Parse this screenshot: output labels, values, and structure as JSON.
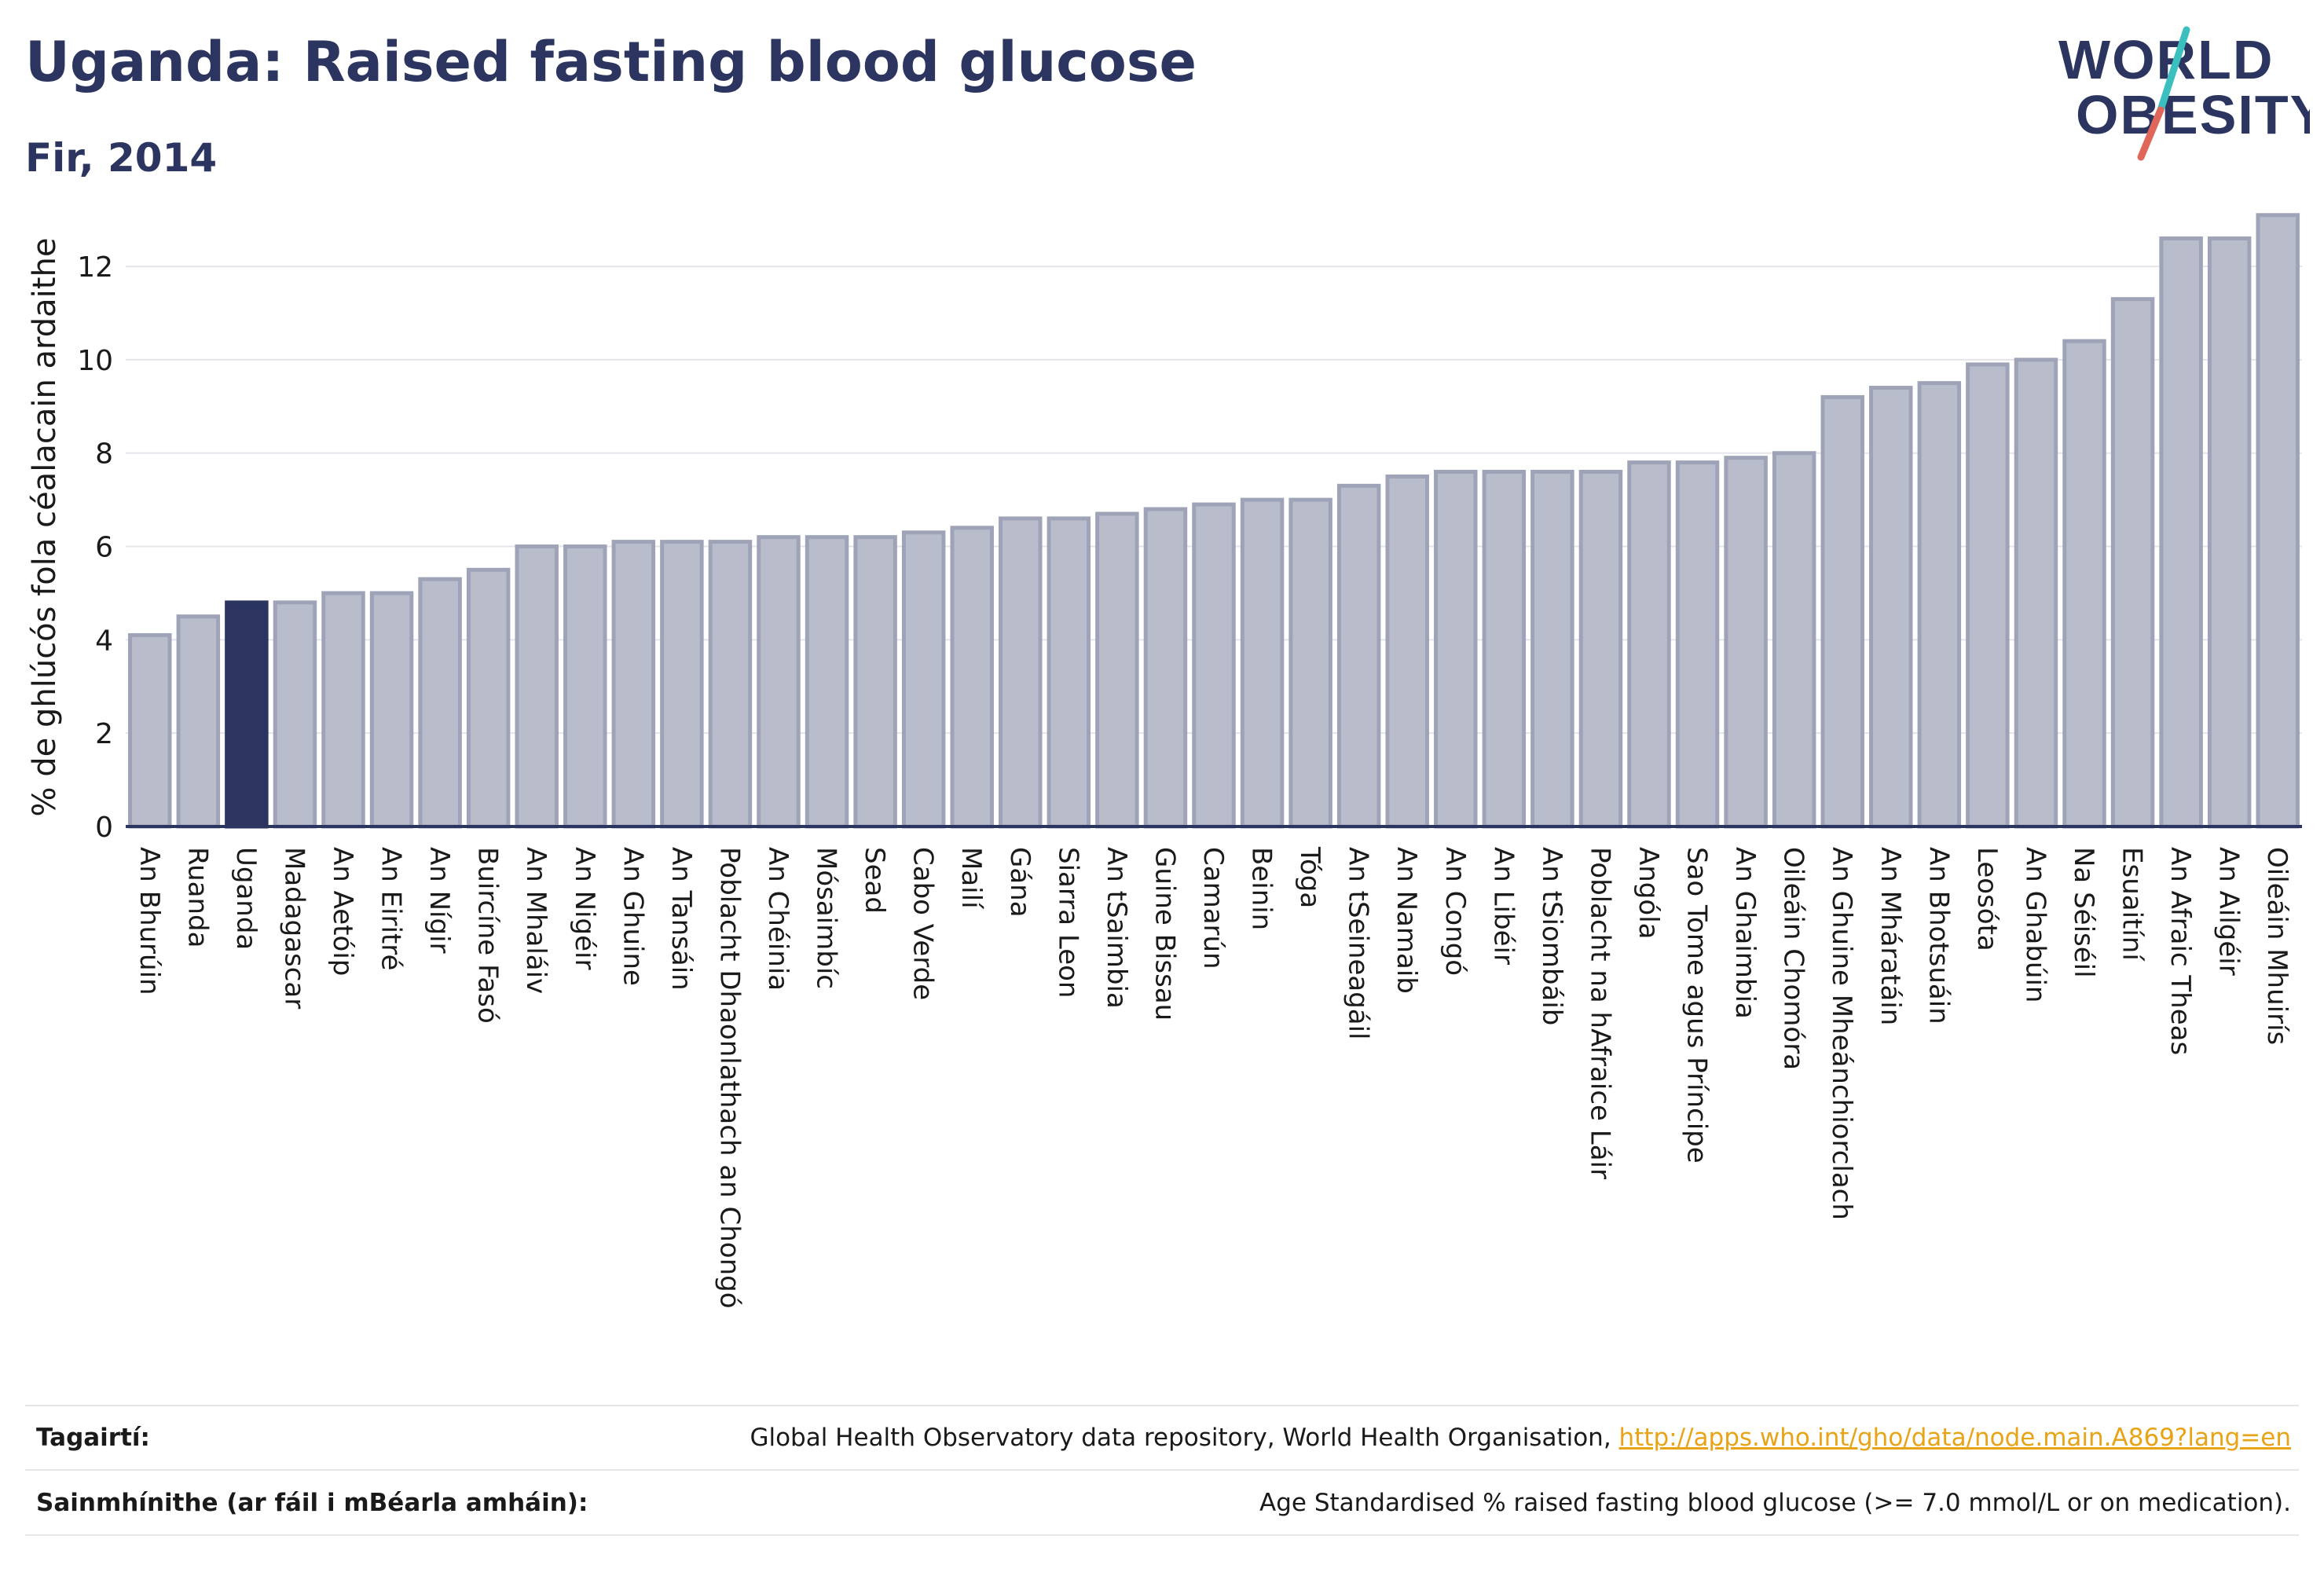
{
  "header": {
    "title": "Uganda: Raised fasting blood glucose",
    "subtitle": "Fir, 2014"
  },
  "logo": {
    "line1": "WORLD",
    "line2": "OBESITY",
    "text_color": "#2b3560",
    "slash_color_top": "#3bbfbf",
    "slash_color_bottom": "#e0665a"
  },
  "chart_data": {
    "type": "bar",
    "ylabel": "% de ghlúcós fola céalacain ardaithe",
    "xlabel": "",
    "ylim": [
      0,
      13.5
    ],
    "yticks": [
      0,
      2,
      4,
      6,
      8,
      10,
      12
    ],
    "grid": true,
    "highlight": "Uganda",
    "colors": {
      "bar": "#b9bdcb",
      "bar_edge": "#9ea3b8",
      "highlight": "#2b3560",
      "axis": "#2b3560",
      "grid": "#e4e5ea"
    },
    "categories": [
      "An Bhurúin",
      "Ruanda",
      "Uganda",
      "Madagascar",
      "An Aetóip",
      "An Eiritré",
      "An Nígir",
      "Buircíne Fasó",
      "An Mhaláiv",
      "An Nigéir",
      "An Ghuine",
      "An Tansáin",
      "Poblacht Dhaonlathach an Chongó",
      "An Chéinia",
      "Mósaimbíc",
      "Sead",
      "Cabo Verde",
      "Mailí",
      "Gána",
      "Siarra Leon",
      "An tSaimbia",
      "Guine Bissau",
      "Camarún",
      "Beinin",
      "Tóga",
      "An tSeineagáil",
      "An Namaib",
      "An Congó",
      "An Libéir",
      "An tSiombáib",
      "Poblacht na hAfraice Láir",
      "Angóla",
      "Sao Tome agus Príncipe",
      "An Ghaimbia",
      "Oileáin Chomóra",
      "An Ghuine Mheánchiorclach",
      "An Mháratáin",
      "An Bhotsuáin",
      "Leosóta",
      "An Ghabúin",
      "Na Séiséil",
      "Esuaitíní",
      "An Afraic Theas",
      "An Ailgéir",
      "Oileáin Mhuirís"
    ],
    "values": [
      4.1,
      4.5,
      4.8,
      4.8,
      5.0,
      5.0,
      5.3,
      5.5,
      6.0,
      6.0,
      6.1,
      6.1,
      6.1,
      6.2,
      6.2,
      6.2,
      6.3,
      6.4,
      6.6,
      6.6,
      6.7,
      6.8,
      6.9,
      7.0,
      7.0,
      7.3,
      7.5,
      7.6,
      7.6,
      7.6,
      7.6,
      7.8,
      7.8,
      7.9,
      8.0,
      9.2,
      9.4,
      9.5,
      9.9,
      10.0,
      10.4,
      11.3,
      12.6,
      12.6,
      13.1
    ]
  },
  "footer": {
    "references_label": "Tagairtí:",
    "references_text": "Global Health Observatory data repository, World Health Organisation, ",
    "references_link": "http://apps.who.int/gho/data/node.main.A869?lang=en",
    "definitions_label": "Sainmhínithe (ar fáil i mBéarla amháin):",
    "definitions_text": "Age Standardised % raised fasting blood glucose (>= 7.0 mmol/L or on medication)."
  }
}
